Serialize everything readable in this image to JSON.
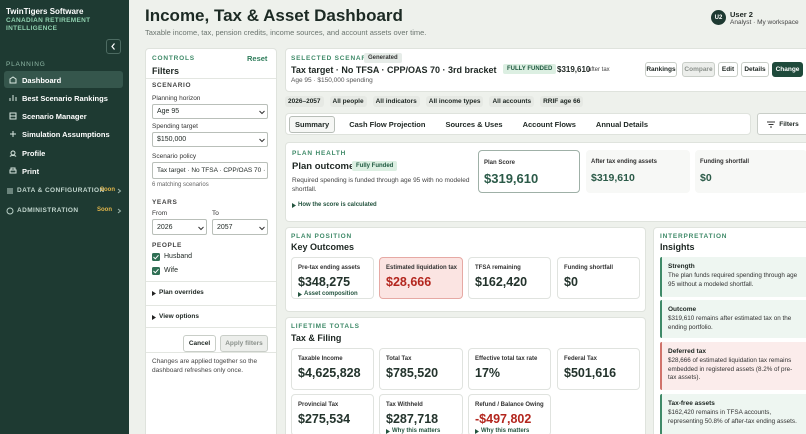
{
  "sidebar": {
    "brand": "TwinTigers Software",
    "tagline": "CANADIAN RETIREMENT INTELLIGENCE",
    "section": "PLANNING",
    "nav": [
      "Dashboard",
      "Best Scenario Rankings",
      "Scenario Manager",
      "Simulation Assumptions",
      "Profile",
      "Print"
    ],
    "groups": [
      {
        "label": "DATA & CONFIGURATION",
        "badge": "Soon"
      },
      {
        "label": "ADMINISTRATION",
        "badge": "Soon"
      }
    ]
  },
  "header": {
    "title": "Income, Tax & Asset Dashboard",
    "subtitle": "Taxable income, tax, pension credits, income sources, and account assets over time."
  },
  "user": {
    "initials": "U2",
    "name": "User 2",
    "role": "Analyst · My workspace"
  },
  "filters": {
    "eyebrow": "CONTROLS",
    "reset": "Reset",
    "title": "Filters",
    "scenario_heading": "SCENARIO",
    "horizon_label": "Planning horizon",
    "horizon": "Age 95",
    "spending_label": "Spending target",
    "spending": "$150,000",
    "policy_label": "Scenario policy",
    "policy": "Tax target · No TFSA · CPP/OAS 70 ·",
    "matches": "6 matching scenarios",
    "years_heading": "YEARS",
    "from_label": "From",
    "from": "2026",
    "to_label": "To",
    "to": "2057",
    "people_heading": "PEOPLE",
    "people": [
      "Husband",
      "Wife"
    ],
    "sections": [
      "Plan overrides",
      "View options"
    ],
    "cancel": "Cancel",
    "apply": "Apply filters",
    "note": "Changes are applied together so the dashboard refreshes only once."
  },
  "scenario": {
    "eyebrow": "SELECTED SCENARIO",
    "badge": "Generated",
    "name": "Tax target · No TFSA · CPP/OAS 70 · 3rd bracket",
    "details": "Age 95 · $150,000 spending",
    "status": "FULLY FUNDED",
    "amount": "$319,610",
    "amount_note": "after tax",
    "actions": [
      "Rankings",
      "Compare",
      "Edit",
      "Details",
      "Change"
    ]
  },
  "chips": [
    "2026–2057",
    "All people",
    "All indicators",
    "All income types",
    "All accounts",
    "RRIF age 66"
  ],
  "tabs": [
    "Summary",
    "Cash Flow Projection",
    "Sources & Uses",
    "Account Flows",
    "Annual Details"
  ],
  "filters_button": "Filters",
  "plan_health": {
    "eyebrow": "PLAN HEALTH",
    "title": "Plan outcome",
    "status": "Fully Funded",
    "description": "Required spending is funded through age 95 with no modeled shortfall.",
    "link": "How the score is calculated",
    "metrics": [
      {
        "label": "Plan Score",
        "value": "$319,610"
      },
      {
        "label": "After tax ending assets",
        "value": "$319,610"
      },
      {
        "label": "Funding shortfall",
        "value": "$0"
      }
    ]
  },
  "plan_position": {
    "eyebrow": "PLAN POSITION",
    "title": "Key Outcomes",
    "cards": [
      {
        "label": "Pre-tax ending assets",
        "value": "$348,275",
        "link": "Asset composition"
      },
      {
        "label": "Estimated liquidation tax",
        "value": "$28,666"
      },
      {
        "label": "TFSA remaining",
        "value": "$162,420"
      },
      {
        "label": "Funding shortfall",
        "value": "$0"
      }
    ]
  },
  "lifetime_totals": {
    "eyebrow": "LIFETIME TOTALS",
    "title": "Tax & Filing",
    "cards": [
      {
        "label": "Taxable Income",
        "value": "$4,625,828"
      },
      {
        "label": "Total Tax",
        "value": "$785,520"
      },
      {
        "label": "Effective total tax rate",
        "value": "17%"
      },
      {
        "label": "Federal Tax",
        "value": "$501,616"
      },
      {
        "label": "Provincial Tax",
        "value": "$275,534"
      },
      {
        "label": "Tax Withheld",
        "value": "$287,718",
        "link": "Why this matters"
      },
      {
        "label": "Refund / Balance Owing",
        "value": "-$497,802",
        "link": "Why this matters"
      }
    ]
  },
  "insights": {
    "eyebrow": "INTERPRETATION",
    "title": "Insights",
    "items": [
      {
        "title": "Strength",
        "text": "The plan funds required spending through age 95 without a modeled shortfall."
      },
      {
        "title": "Outcome",
        "text": "$319,610 remains after estimated tax on the ending portfolio."
      },
      {
        "title": "Deferred tax",
        "text": "$28,666 of estimated liquidation tax remains embedded in registered assets (8.2% of pre-tax assets)."
      },
      {
        "title": "Tax-free assets",
        "text": "$162,420 remains in TFSA accounts, representing 50.8% of after-tax ending assets."
      }
    ]
  }
}
